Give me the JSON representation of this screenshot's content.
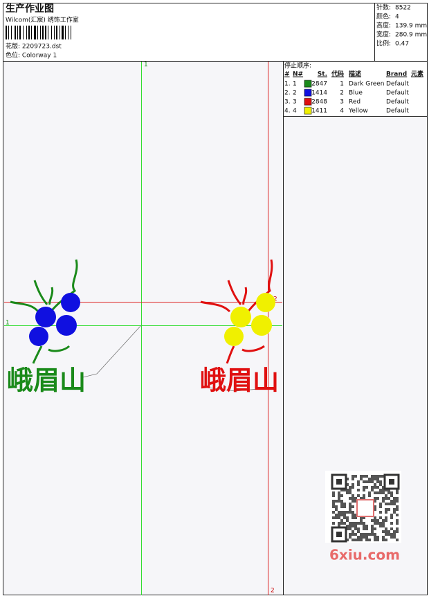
{
  "header": {
    "title": "生产作业图",
    "studio": "Wilcom(汇宸) 绣饰工作室",
    "design_file": "花版: 2209723.dst",
    "colorway": "色位: Colorway 1"
  },
  "stats": [
    {
      "label": "针数:",
      "value": "8522"
    },
    {
      "label": "颜色:",
      "value": "4"
    },
    {
      "label": "高度:",
      "value": "139.9 mm"
    },
    {
      "label": "宽度:",
      "value": "280.9 mm"
    },
    {
      "label": "比例:",
      "value": "0.47"
    }
  ],
  "stop_sequence": {
    "title": "停止顺序:",
    "columns": [
      "#",
      "N#",
      "St.",
      "代码",
      "描述",
      "Brand",
      "元素"
    ],
    "rows": [
      {
        "index": "1.",
        "needle": "1",
        "color": "#1a8a1a",
        "stitch_code": "2847",
        "code": "1",
        "description": "Dark Green",
        "brand": "Default"
      },
      {
        "index": "2.",
        "needle": "2",
        "color": "#1010e0",
        "stitch_code": "1414",
        "code": "2",
        "description": "Blue",
        "brand": "Default"
      },
      {
        "index": "3.",
        "needle": "3",
        "color": "#e01010",
        "stitch_code": "2848",
        "code": "3",
        "description": "Red",
        "brand": "Default"
      },
      {
        "index": "4.",
        "needle": "4",
        "color": "#f0f000",
        "stitch_code": "1411",
        "code": "4",
        "description": "Yellow",
        "brand": "Default"
      }
    ]
  },
  "guides": {
    "vertical_1": "1",
    "horizontal_1": "1",
    "vertical_2": "2",
    "horizontal_2": "2"
  },
  "design": {
    "text_left": "峨眉山",
    "text_right": "峨眉山"
  },
  "watermark": "6xiu.com"
}
